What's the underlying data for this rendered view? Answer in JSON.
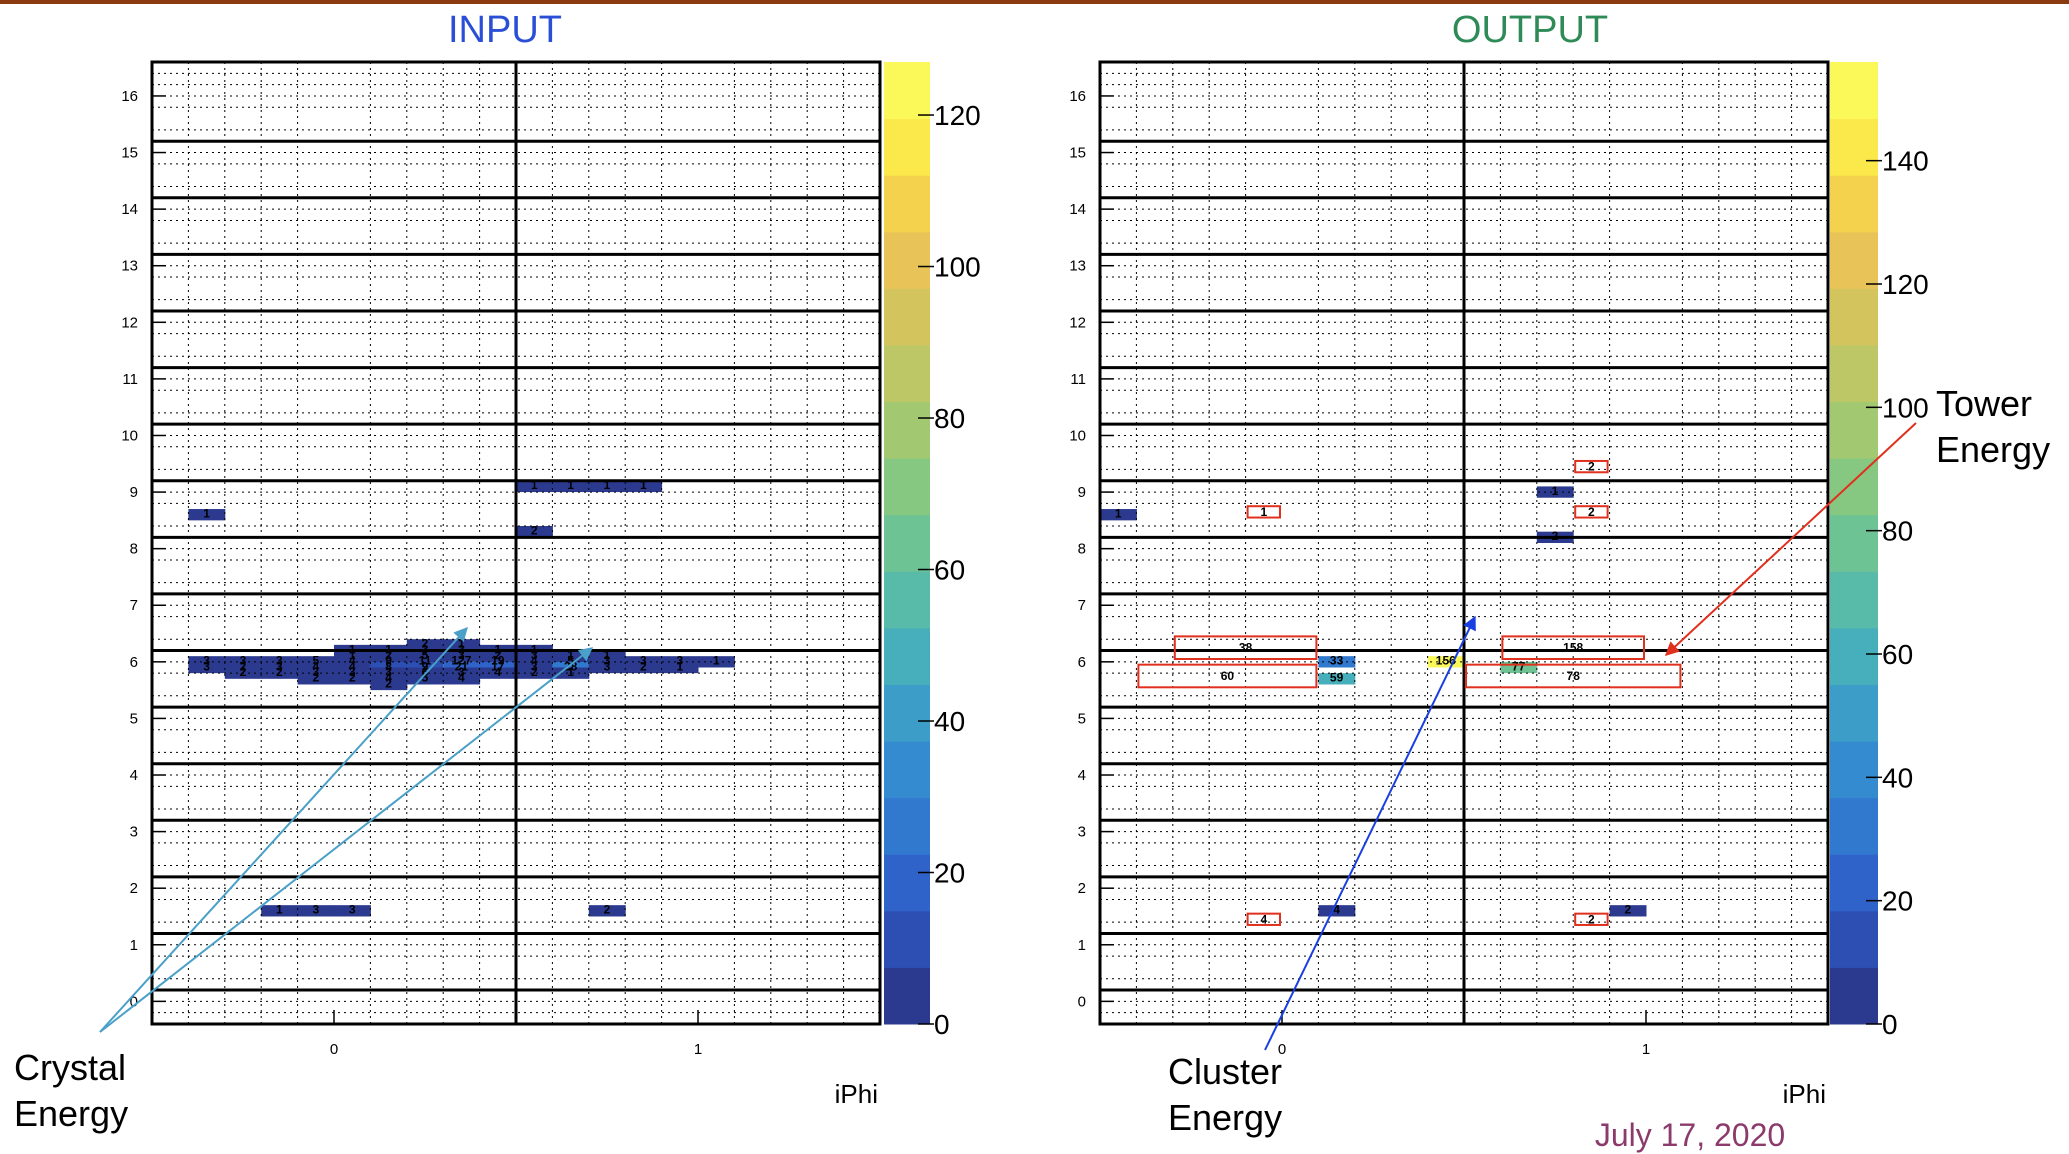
{
  "colors": {
    "top_bar": "#8b3a0f",
    "input_title": "#2a4fd6",
    "output_title": "#2e8b57",
    "date_text": "#8b3a6b",
    "crystal_arrow": "#4aa0c8",
    "cluster_arrow": "#1a3fe0",
    "tower_arrow": "#e0301e",
    "tower_box": "#e0301e",
    "colormap": [
      "#2b3a8f",
      "#2d4fb3",
      "#2f63c9",
      "#3178cf",
      "#358bd0",
      "#3c9ec8",
      "#47aebb",
      "#58baa8",
      "#6dc394",
      "#86c882",
      "#a2c971",
      "#bdc766",
      "#d4c45e",
      "#e8c458",
      "#f5d24e",
      "#fbe84a",
      "#fbf85a"
    ]
  },
  "date": "July 17, 2020",
  "annotations": {
    "crystal": [
      "Crystal",
      "Energy"
    ],
    "cluster": [
      "Cluster",
      "Energy"
    ],
    "tower": [
      "Tower",
      "Energy"
    ]
  },
  "chart_data": [
    {
      "type": "heatmap",
      "title": "INPUT",
      "xlabel": "iPhi",
      "ylabel": "",
      "x_tick_labels": [
        "0",
        "1"
      ],
      "y_tick_labels": [
        "0",
        "1",
        "2",
        "3",
        "4",
        "5",
        "6",
        "7",
        "8",
        "9",
        "10",
        "11",
        "12",
        "13",
        "14",
        "15",
        "16"
      ],
      "colorbar": {
        "range": [
          0,
          127
        ],
        "tick_labels": [
          "0",
          "20",
          "40",
          "60",
          "80",
          "100",
          "120"
        ],
        "ticks": [
          0,
          20,
          40,
          60,
          80,
          100,
          120
        ]
      },
      "cells": [
        {
          "c": 1,
          "r": 64,
          "v": 3
        },
        {
          "c": 1,
          "r": 63,
          "v": 3
        },
        {
          "c": 2,
          "r": 64,
          "v": 3
        },
        {
          "c": 2,
          "r": 63,
          "v": 2
        },
        {
          "c": 3,
          "r": 64,
          "v": 3
        },
        {
          "c": 3,
          "r": 63,
          "v": 3
        },
        {
          "c": 4,
          "r": 64,
          "v": 5
        },
        {
          "c": 4,
          "r": 63,
          "v": 4
        },
        {
          "c": 5,
          "r": 64,
          "v": 4
        },
        {
          "c": 5,
          "r": 63,
          "v": 4
        },
        {
          "c": 6,
          "r": 64,
          "v": 9
        },
        {
          "c": 6,
          "r": 63,
          "v": 8
        },
        {
          "c": 7,
          "r": 64,
          "v": 11
        },
        {
          "c": 7,
          "r": 63,
          "v": 9
        },
        {
          "c": 8,
          "r": 64,
          "v": 127
        },
        {
          "c": 8,
          "r": 63,
          "v": 21
        },
        {
          "c": 9,
          "r": 64,
          "v": 19
        },
        {
          "c": 9,
          "r": 63,
          "v": 17
        },
        {
          "c": 10,
          "r": 64,
          "v": 4
        },
        {
          "c": 10,
          "r": 63,
          "v": 3
        },
        {
          "c": 11,
          "r": 64,
          "v": 5
        },
        {
          "c": 11,
          "r": 63,
          "v": 28
        },
        {
          "c": 12,
          "r": 64,
          "v": 3
        },
        {
          "c": 12,
          "r": 63,
          "v": 3
        },
        {
          "c": 13,
          "r": 64,
          "v": 3
        },
        {
          "c": 13,
          "r": 63,
          "v": 2
        },
        {
          "c": 14,
          "r": 64,
          "v": 3
        },
        {
          "c": 14,
          "r": 63,
          "v": 1
        },
        {
          "c": 15,
          "r": 64,
          "v": 1
        },
        {
          "c": 2,
          "r": 62,
          "v": 2
        },
        {
          "c": 3,
          "r": 62,
          "v": 2
        },
        {
          "c": 4,
          "r": 62,
          "v": 3
        },
        {
          "c": 5,
          "r": 62,
          "v": 3
        },
        {
          "c": 6,
          "r": 62,
          "v": 3
        },
        {
          "c": 7,
          "r": 62,
          "v": 6
        },
        {
          "c": 8,
          "r": 62,
          "v": 3
        },
        {
          "c": 9,
          "r": 62,
          "v": 4
        },
        {
          "c": 10,
          "r": 62,
          "v": 2
        },
        {
          "c": 11,
          "r": 62,
          "v": 1
        },
        {
          "c": 4,
          "r": 61,
          "v": 2
        },
        {
          "c": 5,
          "r": 61,
          "v": 2
        },
        {
          "c": 6,
          "r": 61,
          "v": 4
        },
        {
          "c": 7,
          "r": 61,
          "v": 5
        },
        {
          "c": 8,
          "r": 61,
          "v": 4
        },
        {
          "c": 6,
          "r": 60,
          "v": 2
        },
        {
          "c": 5,
          "r": 65,
          "v": 1
        },
        {
          "c": 6,
          "r": 65,
          "v": 2
        },
        {
          "c": 7,
          "r": 65,
          "v": 5
        },
        {
          "c": 8,
          "r": 65,
          "v": 3
        },
        {
          "c": 9,
          "r": 65,
          "v": 2
        },
        {
          "c": 10,
          "r": 65,
          "v": 3
        },
        {
          "c": 11,
          "r": 65,
          "v": 1
        },
        {
          "c": 12,
          "r": 65,
          "v": 1
        },
        {
          "c": 5,
          "r": 66,
          "v": 1
        },
        {
          "c": 6,
          "r": 66,
          "v": 1
        },
        {
          "c": 7,
          "r": 66,
          "v": 3
        },
        {
          "c": 8,
          "r": 66,
          "v": 3
        },
        {
          "c": 9,
          "r": 66,
          "v": 1
        },
        {
          "c": 10,
          "r": 66,
          "v": 1
        },
        {
          "c": 7,
          "r": 67,
          "v": 2
        },
        {
          "c": 8,
          "r": 67,
          "v": 1
        },
        {
          "c": 1,
          "r": 90,
          "v": 1
        },
        {
          "c": 10,
          "r": 95,
          "v": 1
        },
        {
          "c": 11,
          "r": 95,
          "v": 1
        },
        {
          "c": 12,
          "r": 95,
          "v": 1
        },
        {
          "c": 13,
          "r": 95,
          "v": 1
        },
        {
          "c": 10,
          "r": 87,
          "v": 2
        },
        {
          "c": 3,
          "r": 20,
          "v": 1
        },
        {
          "c": 4,
          "r": 20,
          "v": 3
        },
        {
          "c": 5,
          "r": 20,
          "v": 3
        },
        {
          "c": 12,
          "r": 20,
          "v": 2
        }
      ]
    },
    {
      "type": "heatmap",
      "title": "OUTPUT",
      "xlabel": "iPhi",
      "ylabel": "",
      "x_tick_labels": [
        "0",
        "1"
      ],
      "y_tick_labels": [
        "0",
        "1",
        "2",
        "3",
        "4",
        "5",
        "6",
        "7",
        "8",
        "9",
        "10",
        "11",
        "12",
        "13",
        "14",
        "15",
        "16"
      ],
      "colorbar": {
        "range": [
          0,
          156
        ],
        "tick_labels": [
          "0",
          "20",
          "40",
          "60",
          "80",
          "100",
          "120",
          "140"
        ],
        "ticks": [
          0,
          20,
          40,
          60,
          80,
          100,
          120,
          140
        ]
      },
      "cells": [
        {
          "c": 6,
          "r": 64,
          "v": 33
        },
        {
          "c": 6,
          "r": 61,
          "v": 59
        },
        {
          "c": 9,
          "r": 64,
          "v": 156
        },
        {
          "c": 11,
          "r": 63,
          "v": 77
        },
        {
          "c": 0,
          "r": 90,
          "v": 1
        },
        {
          "c": 12,
          "r": 94,
          "v": 1
        },
        {
          "c": 12,
          "r": 86,
          "v": 2
        },
        {
          "c": 6,
          "r": 20,
          "v": 4
        },
        {
          "c": 14,
          "r": 20,
          "v": 2
        }
      ],
      "tower_boxes": [
        {
          "c0": 2,
          "c1": 5,
          "r0": 65,
          "r1": 67,
          "v": 38
        },
        {
          "c0": 1,
          "c1": 5,
          "r0": 60,
          "r1": 62,
          "v": 60
        },
        {
          "c0": 11,
          "c1": 14,
          "r0": 65,
          "r1": 67,
          "v": 158
        },
        {
          "c0": 10,
          "c1": 15,
          "r0": 60,
          "r1": 62,
          "v": 78
        },
        {
          "c0": 4,
          "c1": 4,
          "r0": 90,
          "r1": 90,
          "v": 1
        },
        {
          "c0": 13,
          "c1": 13,
          "r0": 98,
          "r1": 98,
          "v": 2
        },
        {
          "c0": 13,
          "c1": 13,
          "r0": 90,
          "r1": 90,
          "v": 2
        },
        {
          "c0": 4,
          "c1": 4,
          "r0": 18,
          "r1": 18,
          "v": 4
        },
        {
          "c0": 13,
          "c1": 13,
          "r0": 18,
          "r1": 18,
          "v": 2
        }
      ]
    }
  ]
}
